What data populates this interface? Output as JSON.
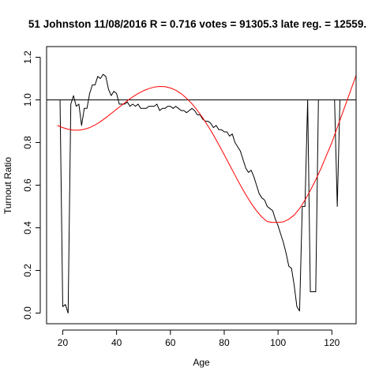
{
  "chart_data": {
    "type": "line",
    "title": "51 Johnston 11/08/2016 R = 0.716 votes = 91305.3 late reg. = 12559.",
    "xlabel": "Age",
    "ylabel": "Turnout Ratio",
    "xlim": [
      14,
      129
    ],
    "ylim": [
      -0.05,
      1.25
    ],
    "x_ticks": [
      20,
      40,
      60,
      80,
      100,
      120
    ],
    "y_ticks": [
      0.0,
      0.2,
      0.4,
      0.6,
      0.8,
      1.0,
      1.2
    ],
    "x_tick_labels": [
      "20",
      "40",
      "60",
      "80",
      "100",
      "120"
    ],
    "y_tick_labels": [
      "0.0",
      "0.2",
      "0.4",
      "0.6",
      "0.8",
      "1.0",
      "1.2"
    ],
    "reference_line": {
      "y": 1.0,
      "color": "#000000"
    },
    "grid": false,
    "legend": "none",
    "series": [
      {
        "color": "#000000",
        "x": [
          19,
          20,
          21,
          22,
          23,
          24,
          25,
          26,
          27,
          28,
          29,
          30,
          31,
          32,
          33,
          34,
          35,
          36,
          37,
          38,
          39,
          40,
          41,
          42,
          43,
          44,
          45,
          46,
          47,
          48,
          49,
          50,
          51,
          52,
          53,
          54,
          55,
          56,
          57,
          58,
          59,
          60,
          61,
          62,
          63,
          64,
          65,
          66,
          67,
          68,
          69,
          70,
          71,
          72,
          73,
          74,
          75,
          76,
          77,
          78,
          79,
          80,
          81,
          82,
          83,
          84,
          85,
          86,
          87,
          88,
          89,
          90,
          91,
          92,
          93,
          94,
          95,
          96,
          97,
          98,
          99,
          100,
          101,
          102,
          103,
          104,
          105,
          106,
          107,
          108,
          109,
          110,
          111,
          112,
          113,
          114,
          115,
          116,
          117,
          118,
          119,
          120,
          121,
          122,
          123,
          124,
          125,
          126,
          127,
          128,
          129
        ],
        "values": [
          1.0,
          0.03,
          0.04,
          0.0,
          0.98,
          1.02,
          0.97,
          0.98,
          0.88,
          0.96,
          0.96,
          1.03,
          1.07,
          1.07,
          1.11,
          1.1,
          1.12,
          1.11,
          1.05,
          1.02,
          1.04,
          1.03,
          0.98,
          0.98,
          0.98,
          0.99,
          0.97,
          0.98,
          0.97,
          0.98,
          0.96,
          0.96,
          0.96,
          0.97,
          0.97,
          0.97,
          0.98,
          0.95,
          0.96,
          0.96,
          0.97,
          0.97,
          0.96,
          0.97,
          0.96,
          0.95,
          0.95,
          0.94,
          0.95,
          0.96,
          0.95,
          0.93,
          0.93,
          0.91,
          0.9,
          0.9,
          0.89,
          0.87,
          0.88,
          0.86,
          0.86,
          0.85,
          0.85,
          0.83,
          0.84,
          0.8,
          0.78,
          0.76,
          0.72,
          0.68,
          0.66,
          0.67,
          0.64,
          0.6,
          0.56,
          0.54,
          0.53,
          0.5,
          0.49,
          0.48,
          0.44,
          0.41,
          0.37,
          0.33,
          0.28,
          0.22,
          0.21,
          0.13,
          0.03,
          0.01,
          0.5,
          0.5,
          1.0,
          0.1,
          0.1,
          0.1,
          1.0,
          1.0,
          1.0,
          1.0,
          1.0,
          1.0,
          1.0,
          0.5,
          1.0,
          1.0,
          1.0,
          1.0,
          1.0,
          1.0,
          1.0
        ]
      },
      {
        "color": "#ff0000",
        "x": [
          18,
          20,
          22,
          24,
          26,
          28,
          30,
          32,
          34,
          36,
          38,
          40,
          42,
          44,
          46,
          48,
          50,
          52,
          54,
          56,
          58,
          60,
          62,
          64,
          66,
          68,
          70,
          72,
          74,
          76,
          78,
          80,
          82,
          84,
          86,
          88,
          90,
          92,
          94,
          96,
          98,
          100,
          102,
          104,
          106,
          108,
          110,
          112,
          114,
          116,
          118,
          120,
          122,
          124,
          126,
          128,
          129
        ],
        "values": [
          0.88,
          0.87,
          0.862,
          0.858,
          0.858,
          0.862,
          0.87,
          0.882,
          0.898,
          0.916,
          0.936,
          0.956,
          0.976,
          0.996,
          1.014,
          1.03,
          1.043,
          1.053,
          1.06,
          1.063,
          1.062,
          1.056,
          1.045,
          1.029,
          1.008,
          0.982,
          0.951,
          0.916,
          0.877,
          0.835,
          0.79,
          0.743,
          0.695,
          0.647,
          0.6,
          0.556,
          0.515,
          0.48,
          0.45,
          0.429,
          0.425,
          0.426,
          0.428,
          0.44,
          0.46,
          0.49,
          0.53,
          0.575,
          0.625,
          0.68,
          0.74,
          0.8,
          0.87,
          0.94,
          1.01,
          1.08,
          1.115
        ]
      }
    ]
  }
}
